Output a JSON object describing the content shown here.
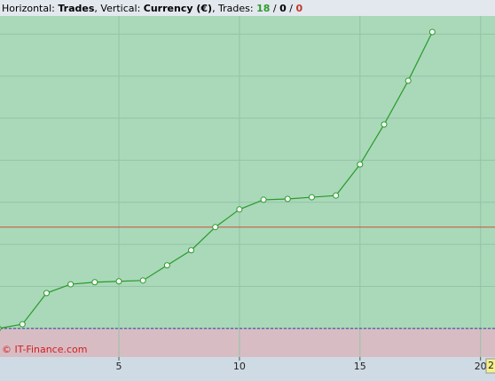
{
  "chart_data": {
    "type": "line",
    "title_parts": [
      {
        "text": "Horizontal: ",
        "bold": false,
        "color": "#000000"
      },
      {
        "text": "Trades",
        "bold": true,
        "color": "#000000"
      },
      {
        "text": ", Vertical: ",
        "bold": false,
        "color": "#000000"
      },
      {
        "text": "Currency (€)",
        "bold": true,
        "color": "#000000"
      },
      {
        "text": ", Trades: ",
        "bold": false,
        "color": "#000000"
      },
      {
        "text": "18",
        "bold": true,
        "color": "#2e9a2e"
      },
      {
        "text": " / ",
        "bold": false,
        "color": "#000000"
      },
      {
        "text": "0",
        "bold": true,
        "color": "#000000"
      },
      {
        "text": " / ",
        "bold": false,
        "color": "#000000"
      },
      {
        "text": "0",
        "bold": true,
        "color": "#c0392b"
      }
    ],
    "x": [
      0,
      1,
      2,
      3,
      4,
      5,
      6,
      7,
      8,
      9,
      10,
      11,
      12,
      13,
      14,
      15,
      16,
      17,
      18
    ],
    "series": [
      {
        "color": "#2a9a2a",
        "values": [
          0,
          0.1,
          0.84,
          1.05,
          1.1,
          1.12,
          1.14,
          1.5,
          1.86,
          2.41,
          2.83,
          3.06,
          3.08,
          3.12,
          3.16,
          3.9,
          4.85,
          5.89,
          7.05
        ]
      }
    ],
    "reference_line": {
      "value": 2.41,
      "color": "#d0503c"
    },
    "xlim": [
      0.07,
      20.6
    ],
    "xticks": [
      5,
      10,
      15,
      20
    ],
    "ylim": [
      -0.68,
      7.43
    ],
    "yticks": [
      0,
      1,
      2,
      3,
      4,
      5,
      6,
      7
    ],
    "grid": true,
    "watermark": "© IT-Finance.com",
    "cursor_label": "2"
  }
}
